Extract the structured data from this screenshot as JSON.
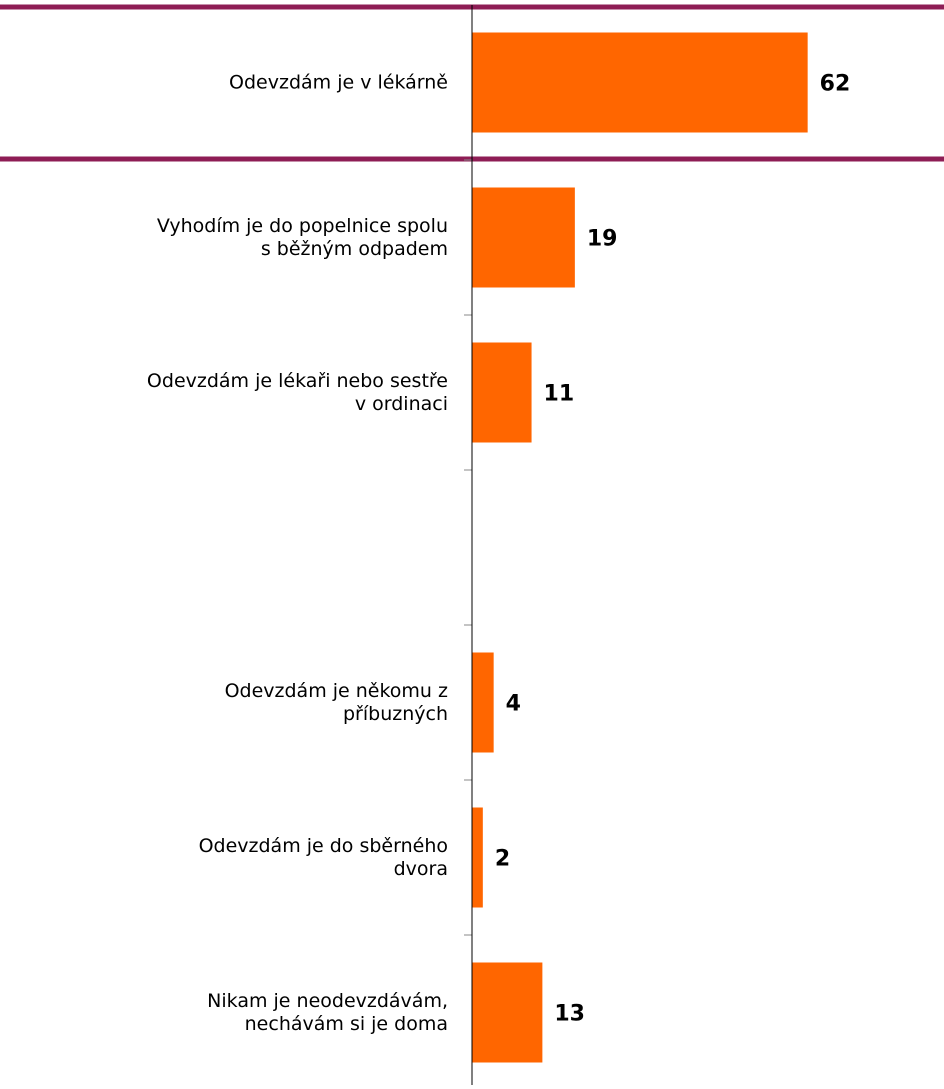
{
  "chart_data": {
    "type": "hbar",
    "categories": [
      "Odevzdám je v lékárně",
      "Vyhodím je do popelnice spolu\ns běžným odpadem",
      "Odevzdám je lékaři nebo sestře\nv ordinaci",
      null,
      "Odevzdám je někomu z\npříbuzných",
      "Odevzdám je do sběrného\ndvora",
      "Nikam je neodevzdávám,\nnechávám si je doma"
    ],
    "values": [
      62,
      19,
      11,
      null,
      4,
      2,
      13
    ],
    "color": "#ff6600",
    "xlim": [
      0,
      87
    ]
  }
}
